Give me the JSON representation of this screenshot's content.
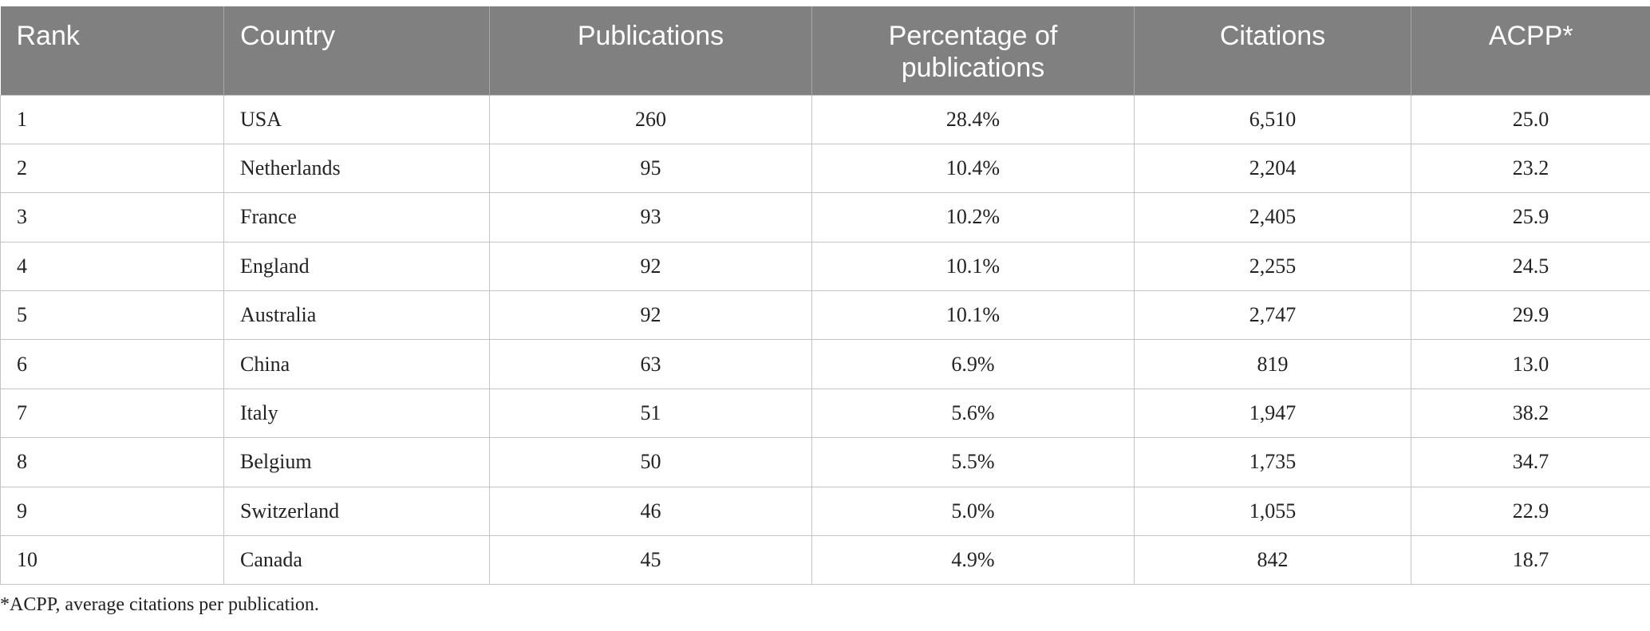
{
  "table": {
    "headers": [
      "Rank",
      "Country",
      "Publications",
      "Percentage of publications",
      "Citations",
      "ACPP*"
    ],
    "rows": [
      {
        "rank": "1",
        "country": "USA",
        "publications": "260",
        "percentage": "28.4%",
        "citations": "6,510",
        "acpp": "25.0"
      },
      {
        "rank": "2",
        "country": "Netherlands",
        "publications": "95",
        "percentage": "10.4%",
        "citations": "2,204",
        "acpp": "23.2"
      },
      {
        "rank": "3",
        "country": "France",
        "publications": "93",
        "percentage": "10.2%",
        "citations": "2,405",
        "acpp": "25.9"
      },
      {
        "rank": "4",
        "country": "England",
        "publications": "92",
        "percentage": "10.1%",
        "citations": "2,255",
        "acpp": "24.5"
      },
      {
        "rank": "5",
        "country": "Australia",
        "publications": "92",
        "percentage": "10.1%",
        "citations": "2,747",
        "acpp": "29.9"
      },
      {
        "rank": "6",
        "country": "China",
        "publications": "63",
        "percentage": "6.9%",
        "citations": "819",
        "acpp": "13.0"
      },
      {
        "rank": "7",
        "country": "Italy",
        "publications": "51",
        "percentage": "5.6%",
        "citations": "1,947",
        "acpp": "38.2"
      },
      {
        "rank": "8",
        "country": "Belgium",
        "publications": "50",
        "percentage": "5.5%",
        "citations": "1,735",
        "acpp": "34.7"
      },
      {
        "rank": "9",
        "country": "Switzerland",
        "publications": "46",
        "percentage": "5.0%",
        "citations": "1,055",
        "acpp": "22.9"
      },
      {
        "rank": "10",
        "country": "Canada",
        "publications": "45",
        "percentage": "4.9%",
        "citations": "842",
        "acpp": "18.7"
      }
    ]
  },
  "footnote": "*ACPP, average citations per publication.",
  "colors": {
    "header_bg": "#808080",
    "header_text": "#ffffff",
    "grid": "#c4c4c4"
  }
}
